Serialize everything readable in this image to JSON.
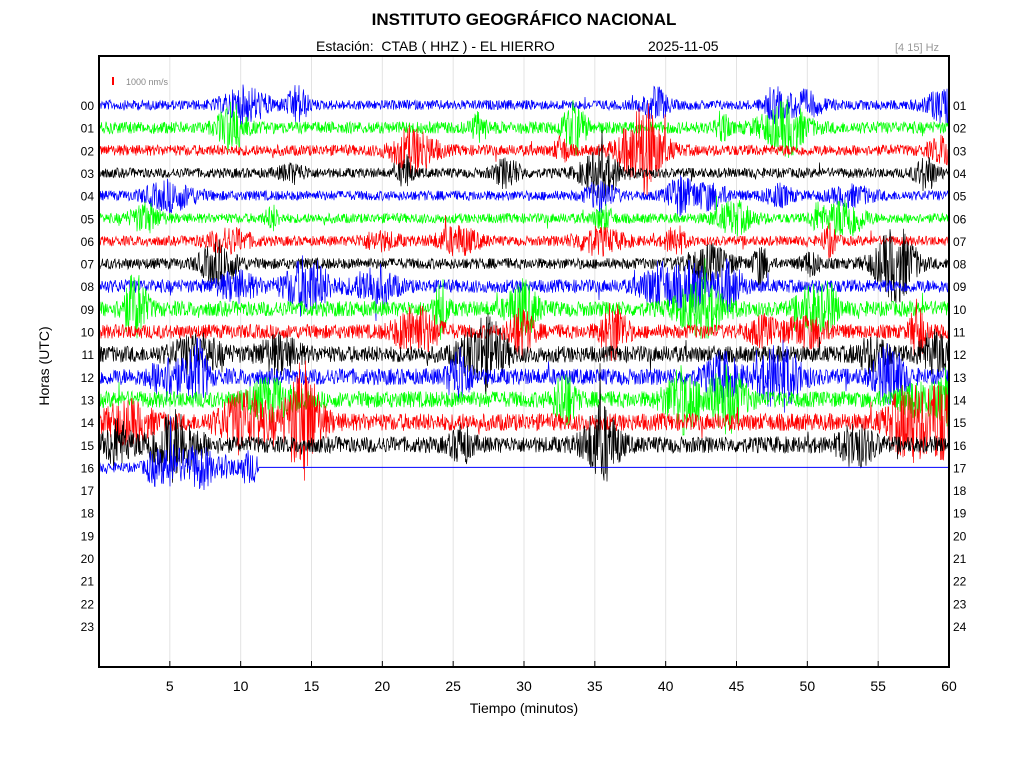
{
  "header": {
    "title": "INSTITUTO GEOGRÁFICO NACIONAL",
    "station_line": "Estación:  CTAB ( HHZ ) - EL HIERRO",
    "date": "2025-11-05",
    "frequency_band": "[4 15] Hz"
  },
  "scale_legend": {
    "label": "1000 nm/s",
    "color": "#ff0000"
  },
  "colors": {
    "blue": "#0000ff",
    "green": "#00ff00",
    "red": "#ff0000",
    "black": "#000000"
  },
  "chart_data": {
    "type": "line",
    "subtype": "helicorder",
    "xlabel": "Tiempo (minutos)",
    "ylabel": "Horas (UTC)",
    "xlim": [
      0,
      60
    ],
    "x_ticks": [
      5,
      10,
      15,
      20,
      25,
      30,
      35,
      40,
      45,
      50,
      55,
      60
    ],
    "left_hour_labels": [
      "00",
      "01",
      "02",
      "03",
      "04",
      "05",
      "06",
      "07",
      "08",
      "09",
      "10",
      "11",
      "12",
      "13",
      "14",
      "15",
      "16",
      "17",
      "18",
      "19",
      "20",
      "21",
      "22",
      "23"
    ],
    "right_hour_labels": [
      "01",
      "02",
      "03",
      "04",
      "05",
      "06",
      "07",
      "08",
      "09",
      "10",
      "11",
      "12",
      "13",
      "14",
      "15",
      "16",
      "17",
      "18",
      "19",
      "20",
      "21",
      "22",
      "23",
      "24"
    ],
    "grid": "vertical",
    "color_cycle": [
      "#0000ff",
      "#00ff00",
      "#ff0000",
      "#000000"
    ],
    "traces": [
      {
        "hour": "00",
        "color": "#0000ff",
        "end_minute": 60,
        "amplitude": 0.9
      },
      {
        "hour": "01",
        "color": "#00ff00",
        "end_minute": 60,
        "amplitude": 1.1
      },
      {
        "hour": "02",
        "color": "#ff0000",
        "end_minute": 60,
        "amplitude": 1.0
      },
      {
        "hour": "03",
        "color": "#000000",
        "end_minute": 60,
        "amplitude": 0.9
      },
      {
        "hour": "04",
        "color": "#0000ff",
        "end_minute": 60,
        "amplitude": 0.9
      },
      {
        "hour": "05",
        "color": "#00ff00",
        "end_minute": 60,
        "amplitude": 0.9
      },
      {
        "hour": "06",
        "color": "#ff0000",
        "end_minute": 60,
        "amplitude": 0.9
      },
      {
        "hour": "07",
        "color": "#000000",
        "end_minute": 60,
        "amplitude": 1.0
      },
      {
        "hour": "08",
        "color": "#0000ff",
        "end_minute": 60,
        "amplitude": 1.2
      },
      {
        "hour": "09",
        "color": "#00ff00",
        "end_minute": 60,
        "amplitude": 1.4
      },
      {
        "hour": "10",
        "color": "#ff0000",
        "end_minute": 60,
        "amplitude": 1.3
      },
      {
        "hour": "11",
        "color": "#000000",
        "end_minute": 60,
        "amplitude": 1.5
      },
      {
        "hour": "12",
        "color": "#0000ff",
        "end_minute": 60,
        "amplitude": 1.5
      },
      {
        "hour": "13",
        "color": "#00ff00",
        "end_minute": 60,
        "amplitude": 1.5
      },
      {
        "hour": "14",
        "color": "#ff0000",
        "end_minute": 60,
        "amplitude": 1.6
      },
      {
        "hour": "15",
        "color": "#000000",
        "end_minute": 60,
        "amplitude": 1.5
      },
      {
        "hour": "16",
        "color": "#0000ff",
        "end_minute": 11.3,
        "amplitude": 0.9
      }
    ]
  }
}
